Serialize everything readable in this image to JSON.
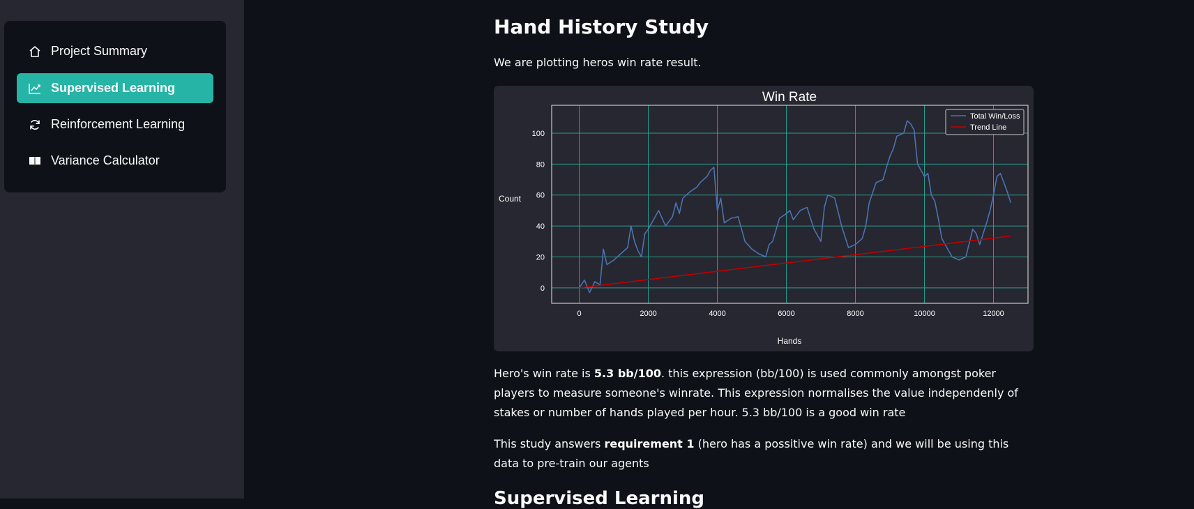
{
  "sidebar": {
    "items": [
      {
        "label": "Project Summary",
        "icon": "house-icon",
        "active": false
      },
      {
        "label": "Supervised Learning",
        "icon": "chart-line-icon",
        "active": true
      },
      {
        "label": "Reinforcement Learning",
        "icon": "refresh-icon",
        "active": false
      },
      {
        "label": "Variance Calculator",
        "icon": "book-icon",
        "active": false
      }
    ]
  },
  "main": {
    "title": "Hand History Study",
    "intro": "We are plotting heros win rate result.",
    "para1_a": "Hero's win rate is ",
    "para1_bold": "5.3 bb/100",
    "para1_b": ". this expression (bb/100) is used commonly amongst poker players to measure someone's winrate. This expression normalises the value independenly of stakes or number of hands played per hour. 5.3 bb/100 is a good win rate",
    "para2_a": "This study answers ",
    "para2_bold": "requirement 1",
    "para2_b": " (hero has a possitive win rate) and we will be using this data to pre-train our agents",
    "next_heading": "Supervised Learning"
  },
  "colors": {
    "accent": "#26b4a6",
    "background": "#0e1117",
    "sidebar": "#262730",
    "win_loss_line": "#4c72b0",
    "trend_line": "#c00000",
    "grid": "#2a9d8f"
  },
  "chart_data": {
    "type": "line",
    "title": "Win Rate",
    "xlabel": "Hands",
    "ylabel": "Count",
    "xlim": [
      -800,
      13000
    ],
    "ylim": [
      -10,
      118
    ],
    "xticks": [
      0,
      2000,
      4000,
      6000,
      8000,
      10000,
      12000
    ],
    "yticks": [
      0,
      20,
      40,
      60,
      80,
      100
    ],
    "grid": true,
    "legend_position": "top-right",
    "series": [
      {
        "name": "Total Win/Loss",
        "x": [
          0,
          150,
          300,
          450,
          600,
          700,
          800,
          1000,
          1200,
          1400,
          1500,
          1600,
          1700,
          1800,
          1900,
          2000,
          2100,
          2300,
          2500,
          2700,
          2800,
          2900,
          3000,
          3200,
          3400,
          3500,
          3600,
          3700,
          3800,
          3900,
          4000,
          4100,
          4200,
          4400,
          4600,
          4800,
          5000,
          5200,
          5400,
          5500,
          5600,
          5800,
          6000,
          6100,
          6200,
          6400,
          6600,
          6800,
          7000,
          7100,
          7200,
          7400,
          7600,
          7800,
          8000,
          8100,
          8200,
          8300,
          8400,
          8600,
          8800,
          8900,
          9000,
          9100,
          9200,
          9400,
          9500,
          9600,
          9700,
          9800,
          10000,
          10100,
          10200,
          10300,
          10400,
          10500,
          10600,
          10800,
          11000,
          11200,
          11400,
          11500,
          11600,
          11800,
          11900,
          12000,
          12100,
          12200,
          12300,
          12400,
          12500
        ],
        "y": [
          0,
          5,
          -3,
          4,
          2,
          25,
          15,
          18,
          22,
          26,
          40,
          30,
          24,
          20,
          35,
          38,
          42,
          50,
          40,
          46,
          55,
          48,
          58,
          62,
          65,
          68,
          70,
          72,
          76,
          78,
          50,
          58,
          42,
          45,
          46,
          30,
          25,
          22,
          20,
          28,
          30,
          45,
          48,
          50,
          44,
          50,
          52,
          38,
          30,
          52,
          60,
          58,
          40,
          26,
          28,
          30,
          32,
          40,
          55,
          68,
          70,
          78,
          85,
          90,
          98,
          100,
          108,
          106,
          102,
          80,
          72,
          74,
          60,
          56,
          45,
          32,
          28,
          20,
          18,
          20,
          38,
          35,
          28,
          42,
          50,
          60,
          72,
          74,
          68,
          62,
          55
        ]
      },
      {
        "name": "Trend Line",
        "x": [
          0,
          12500
        ],
        "y": [
          0,
          33.5
        ]
      }
    ]
  }
}
